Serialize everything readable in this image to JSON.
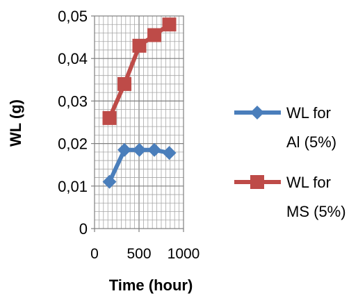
{
  "chart_data": {
    "type": "line",
    "title": "",
    "xlabel": "Time (hour)",
    "ylabel": "WL (g)",
    "xlim": [
      0,
      1000
    ],
    "ylim": [
      0,
      0.05
    ],
    "x_ticks": [
      "0",
      "500",
      "1000"
    ],
    "x_tick_values": [
      0,
      500,
      1000
    ],
    "y_ticks": [
      "0",
      "0,01",
      "0,02",
      "0,03",
      "0,04",
      "0,05"
    ],
    "y_tick_values": [
      0,
      0.01,
      0.02,
      0.03,
      0.04,
      0.05
    ],
    "grid": true,
    "legend_position": "right",
    "series": [
      {
        "name": "WL for Al (5%)",
        "legend_lines": [
          "WL for",
          "Al (5%)"
        ],
        "marker": "diamond",
        "color": "#4a7ebb",
        "x": [
          168,
          336,
          504,
          672,
          840
        ],
        "y": [
          0.011,
          0.0185,
          0.0185,
          0.0185,
          0.0178
        ]
      },
      {
        "name": "WL for MS (5%)",
        "legend_lines": [
          "WL for",
          "MS (5%)"
        ],
        "marker": "square",
        "color": "#be4b48",
        "x": [
          168,
          336,
          504,
          672,
          840
        ],
        "y": [
          0.026,
          0.034,
          0.043,
          0.0455,
          0.048
        ]
      }
    ]
  }
}
